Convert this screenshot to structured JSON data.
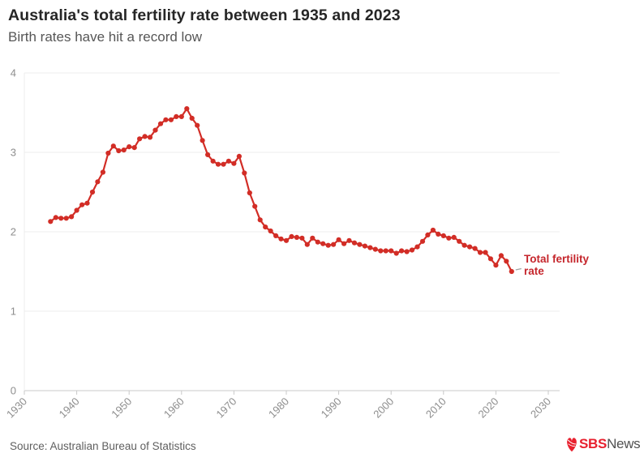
{
  "chart": {
    "title": "Australia's total fertility rate between 1935 and 2023",
    "subtitle": "Birth rates have hit a record low",
    "annotation": {
      "line1": "Total fertility",
      "line2": "rate"
    }
  },
  "footer": {
    "source": "Source: Australian Bureau of Statistics",
    "logo": {
      "sbs": "SBS",
      "news": "News"
    }
  },
  "colors": {
    "line": "#d22d26",
    "annotation_text": "#c5262c",
    "gridline": "#ececec",
    "axis_line": "#c9c9c9",
    "tick_label": "#8e8e8e",
    "title_text": "#262626",
    "subtitle_text": "#565656",
    "sbs_red": "#e8202e",
    "news_gray": "#515151"
  },
  "chart_data": {
    "type": "line",
    "title": "Australia's total fertility rate between 1935 and 2023",
    "subtitle": "Birth rates have hit a record low",
    "xlabel": "",
    "ylabel": "",
    "xlim": [
      1930,
      2030
    ],
    "ylim": [
      0,
      4
    ],
    "x_ticks": [
      1930,
      1940,
      1950,
      1960,
      1970,
      1980,
      1990,
      2000,
      2010,
      2020,
      2030
    ],
    "y_ticks": [
      0,
      1,
      2,
      3,
      4
    ],
    "grid": "horizontal",
    "legend_position": "annotation-right",
    "series": [
      {
        "name": "Total fertility rate",
        "x": [
          1935,
          1936,
          1937,
          1938,
          1939,
          1940,
          1941,
          1942,
          1943,
          1944,
          1945,
          1946,
          1947,
          1948,
          1949,
          1950,
          1951,
          1952,
          1953,
          1954,
          1955,
          1956,
          1957,
          1958,
          1959,
          1960,
          1961,
          1962,
          1963,
          1964,
          1965,
          1966,
          1967,
          1968,
          1969,
          1970,
          1971,
          1972,
          1973,
          1974,
          1975,
          1976,
          1977,
          1978,
          1979,
          1980,
          1981,
          1982,
          1983,
          1984,
          1985,
          1986,
          1987,
          1988,
          1989,
          1990,
          1991,
          1992,
          1993,
          1994,
          1995,
          1996,
          1997,
          1998,
          1999,
          2000,
          2001,
          2002,
          2003,
          2004,
          2005,
          2006,
          2007,
          2008,
          2009,
          2010,
          2011,
          2012,
          2013,
          2014,
          2015,
          2016,
          2017,
          2018,
          2019,
          2020,
          2021,
          2022,
          2023
        ],
        "values": [
          2.13,
          2.18,
          2.17,
          2.17,
          2.19,
          2.27,
          2.34,
          2.36,
          2.5,
          2.63,
          2.75,
          2.99,
          3.08,
          3.02,
          3.03,
          3.07,
          3.06,
          3.17,
          3.2,
          3.19,
          3.28,
          3.36,
          3.41,
          3.41,
          3.45,
          3.45,
          3.55,
          3.43,
          3.34,
          3.15,
          2.97,
          2.89,
          2.85,
          2.85,
          2.89,
          2.86,
          2.95,
          2.74,
          2.49,
          2.32,
          2.15,
          2.06,
          2.01,
          1.95,
          1.91,
          1.89,
          1.94,
          1.93,
          1.92,
          1.84,
          1.92,
          1.87,
          1.85,
          1.83,
          1.84,
          1.9,
          1.85,
          1.89,
          1.86,
          1.84,
          1.82,
          1.8,
          1.78,
          1.76,
          1.76,
          1.76,
          1.73,
          1.76,
          1.75,
          1.77,
          1.81,
          1.88,
          1.96,
          2.02,
          1.97,
          1.95,
          1.92,
          1.93,
          1.88,
          1.83,
          1.81,
          1.79,
          1.74,
          1.74,
          1.66,
          1.58,
          1.7,
          1.63,
          1.5
        ]
      }
    ]
  }
}
